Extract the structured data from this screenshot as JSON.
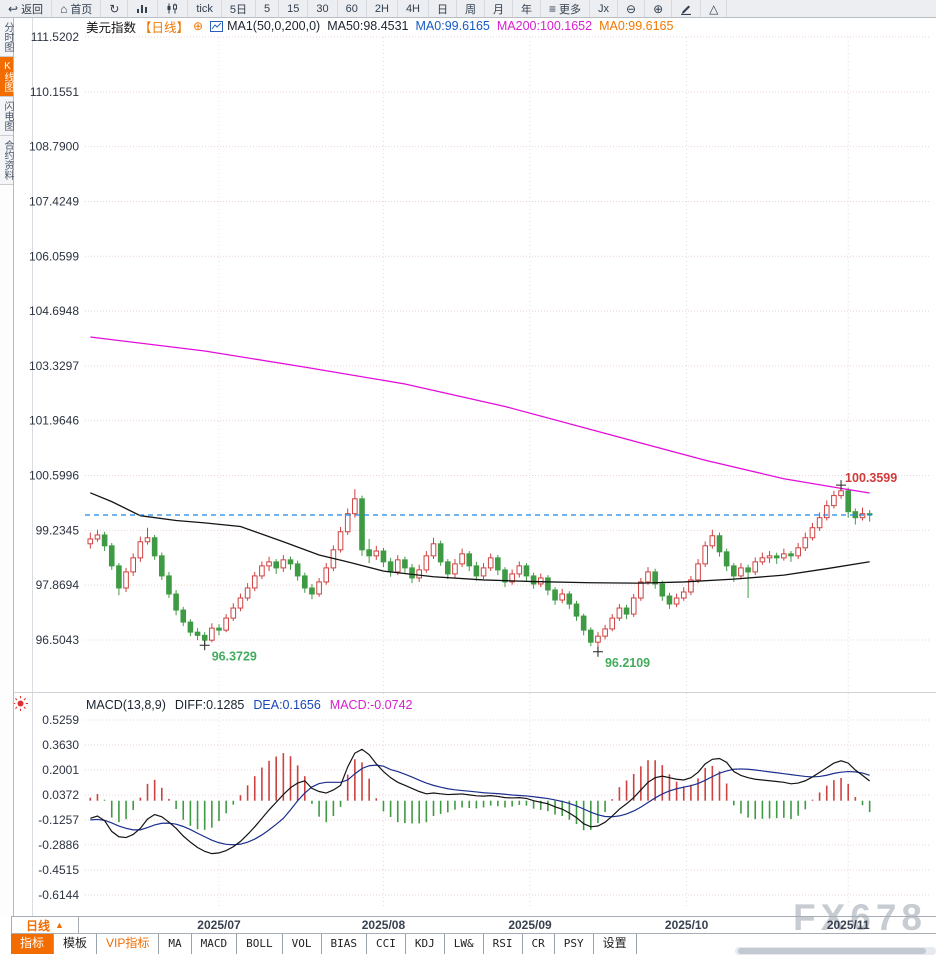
{
  "toolbar": {
    "items": [
      {
        "icon": "back",
        "label": "返回",
        "name": "back-button"
      },
      {
        "icon": "home",
        "label": "首页",
        "name": "home-button"
      },
      {
        "icon": "refresh",
        "label": "",
        "name": "refresh-button"
      },
      {
        "icon": "barchart",
        "label": "",
        "name": "bar-chart-button"
      },
      {
        "icon": "kline",
        "label": "",
        "name": "kline-style-button"
      },
      {
        "label": "tick",
        "name": "interval-tick-button"
      },
      {
        "label": "5日",
        "name": "interval-5day-button"
      },
      {
        "label": "5",
        "name": "interval-5min-button"
      },
      {
        "label": "15",
        "name": "interval-15min-button"
      },
      {
        "label": "30",
        "name": "interval-30min-button"
      },
      {
        "label": "60",
        "name": "interval-60min-button"
      },
      {
        "label": "2H",
        "name": "interval-2h-button"
      },
      {
        "label": "4H",
        "name": "interval-4h-button"
      },
      {
        "label": "日",
        "name": "interval-day-button"
      },
      {
        "label": "周",
        "name": "interval-week-button"
      },
      {
        "label": "月",
        "name": "interval-month-button"
      },
      {
        "label": "年",
        "name": "interval-year-button"
      },
      {
        "icon": "menu",
        "label": "更多",
        "name": "more-menu-button"
      },
      {
        "label": "Jx",
        "name": "indicator-formula-button"
      },
      {
        "icon": "zoomout",
        "label": "",
        "name": "zoom-out-button"
      },
      {
        "icon": "zoomin",
        "label": "",
        "name": "zoom-in-button"
      },
      {
        "icon": "pencil",
        "label": "",
        "name": "draw-tool-button"
      },
      {
        "icon": "triangle",
        "label": "",
        "name": "shape-tool-button"
      }
    ]
  },
  "sidebar": {
    "items": [
      {
        "label": "分时图",
        "active": false
      },
      {
        "label": "K线图",
        "active": true
      },
      {
        "label": "闪电图",
        "active": false
      },
      {
        "label": "合约资料",
        "active": false
      }
    ]
  },
  "chart_header": {
    "symbol": "美元指数",
    "period_badge": "【日线】",
    "add_icon": "⊕",
    "ma_settings": "MA1(50,0,200,0)",
    "ma50_label": "MA50:98.4531",
    "ma0_blue_label": "MA0:99.6165",
    "ma200_label": "MA200:100.1652",
    "ma0_orange_label": "MA0:99.6165"
  },
  "macd_header": {
    "title": "MACD(13,8,9)",
    "diff_label": "DIFF:0.1285",
    "dea_label": "DEA:0.1656",
    "macd_label": "MACD:-0.0742"
  },
  "bottom": {
    "period_label": "日线",
    "period_arrow": "▲",
    "watermark": "FX678",
    "tabs": [
      {
        "label": "指标",
        "state": "active"
      },
      {
        "label": "模板",
        "state": ""
      },
      {
        "label": "VIP指标",
        "state": "vip"
      },
      {
        "label": "MA",
        "state": "mono"
      },
      {
        "label": "MACD",
        "state": "mono"
      },
      {
        "label": "BOLL",
        "state": "mono"
      },
      {
        "label": "VOL",
        "state": "mono"
      },
      {
        "label": "BIAS",
        "state": "mono"
      },
      {
        "label": "CCI",
        "state": "mono"
      },
      {
        "label": "KDJ",
        "state": "mono"
      },
      {
        "label": "LW&",
        "state": "mono"
      },
      {
        "label": "RSI",
        "state": "mono"
      },
      {
        "label": "CR",
        "state": "mono"
      },
      {
        "label": "PSY",
        "state": "mono"
      },
      {
        "label": "设置",
        "state": ""
      }
    ]
  },
  "chart_data": {
    "type": "candlestick",
    "title": "美元指数 日线 (US Dollar Index daily with MA50/MA200 and MACD)",
    "price_axis": [
      "111.5202",
      "110.1551",
      "108.7900",
      "107.4249",
      "106.0599",
      "104.6948",
      "103.3297",
      "101.9646",
      "100.5996",
      "99.2345",
      "97.8694",
      "96.5043"
    ],
    "macd_axis": [
      "0.5259",
      "0.3630",
      "0.2001",
      "0.0372",
      "-0.1257",
      "-0.2886",
      "-0.4515",
      "-0.6144"
    ],
    "x_labels": [
      "2025/07",
      "2025/08",
      "2025/09",
      "2025/10",
      "2025/11"
    ],
    "x_label_indices": [
      18,
      41,
      61.5,
      83.4,
      106
    ],
    "current_price": 99.6165,
    "annotations": [
      {
        "label": "96.3729",
        "index": 16,
        "price": 96.3729,
        "kind": "low"
      },
      {
        "label": "96.2109",
        "index": 71,
        "price": 96.2109,
        "kind": "low"
      },
      {
        "label": "100.3599",
        "index": 105,
        "price": 100.3599,
        "kind": "high"
      }
    ],
    "colors": {
      "up": "#cf4140",
      "down": "#3f9a44",
      "ma50": "#141414",
      "ma200": "#e40ddb",
      "diff": "#141414",
      "dea": "#1b2f8f",
      "price_line": "#1e88e5",
      "annotation_low": "#43ab5e",
      "annotation_high": "#d03a3a"
    },
    "candles": [
      [
        98.9,
        99.18,
        98.78,
        99.02
      ],
      [
        99.02,
        99.25,
        98.95,
        99.12
      ],
      [
        99.12,
        99.2,
        98.72,
        98.85
      ],
      [
        98.85,
        98.92,
        98.25,
        98.35
      ],
      [
        98.35,
        98.42,
        97.62,
        97.8
      ],
      [
        97.8,
        98.3,
        97.7,
        98.2
      ],
      [
        98.2,
        98.66,
        98.1,
        98.55
      ],
      [
        98.55,
        99.08,
        98.45,
        98.95
      ],
      [
        98.95,
        99.3,
        98.88,
        99.05
      ],
      [
        99.05,
        99.12,
        98.5,
        98.6
      ],
      [
        98.6,
        98.68,
        98.0,
        98.1
      ],
      [
        98.1,
        98.2,
        97.55,
        97.65
      ],
      [
        97.65,
        97.75,
        97.12,
        97.25
      ],
      [
        97.25,
        97.33,
        96.85,
        96.95
      ],
      [
        96.95,
        97.02,
        96.6,
        96.7
      ],
      [
        96.7,
        96.8,
        96.5,
        96.62
      ],
      [
        96.62,
        96.7,
        96.3729,
        96.5
      ],
      [
        96.5,
        96.92,
        96.45,
        96.8
      ],
      [
        96.8,
        96.9,
        96.62,
        96.75
      ],
      [
        96.75,
        97.15,
        96.7,
        97.05
      ],
      [
        97.05,
        97.42,
        96.98,
        97.3
      ],
      [
        97.3,
        97.66,
        97.22,
        97.55
      ],
      [
        97.55,
        97.92,
        97.48,
        97.8
      ],
      [
        97.8,
        98.2,
        97.72,
        98.1
      ],
      [
        98.1,
        98.46,
        98.02,
        98.35
      ],
      [
        98.35,
        98.58,
        98.22,
        98.45
      ],
      [
        98.45,
        98.52,
        98.15,
        98.3
      ],
      [
        98.3,
        98.62,
        98.2,
        98.5
      ],
      [
        98.5,
        98.58,
        98.25,
        98.4
      ],
      [
        98.4,
        98.48,
        97.98,
        98.1
      ],
      [
        98.1,
        98.18,
        97.68,
        97.8
      ],
      [
        97.8,
        97.9,
        97.52,
        97.65
      ],
      [
        97.65,
        98.05,
        97.58,
        97.95
      ],
      [
        97.95,
        98.42,
        97.88,
        98.3
      ],
      [
        98.3,
        98.86,
        98.22,
        98.75
      ],
      [
        98.75,
        99.32,
        98.68,
        99.2
      ],
      [
        99.2,
        99.78,
        99.12,
        99.65
      ],
      [
        99.65,
        100.26,
        99.55,
        100.02
      ],
      [
        100.02,
        100.1,
        98.6,
        98.75
      ],
      [
        98.75,
        99.02,
        98.42,
        98.6
      ],
      [
        98.6,
        98.85,
        98.5,
        98.72
      ],
      [
        98.72,
        98.8,
        98.32,
        98.45
      ],
      [
        98.45,
        98.55,
        98.08,
        98.2
      ],
      [
        98.2,
        98.62,
        98.12,
        98.5
      ],
      [
        98.5,
        98.58,
        98.18,
        98.3
      ],
      [
        98.3,
        98.4,
        97.92,
        98.05
      ],
      [
        98.05,
        98.38,
        97.95,
        98.25
      ],
      [
        98.25,
        98.72,
        98.18,
        98.6
      ],
      [
        98.6,
        99.05,
        98.52,
        98.9
      ],
      [
        98.9,
        98.98,
        98.35,
        98.45
      ],
      [
        98.45,
        98.52,
        98.02,
        98.15
      ],
      [
        98.15,
        98.52,
        98.05,
        98.4
      ],
      [
        98.4,
        98.78,
        98.32,
        98.65
      ],
      [
        98.65,
        98.72,
        98.22,
        98.35
      ],
      [
        98.35,
        98.45,
        97.98,
        98.1
      ],
      [
        98.1,
        98.42,
        98.02,
        98.3
      ],
      [
        98.3,
        98.66,
        98.22,
        98.55
      ],
      [
        98.55,
        98.62,
        98.12,
        98.25
      ],
      [
        98.25,
        98.32,
        97.82,
        97.95
      ],
      [
        97.95,
        98.26,
        97.88,
        98.15
      ],
      [
        98.15,
        98.46,
        98.06,
        98.35
      ],
      [
        98.35,
        98.42,
        97.98,
        98.1
      ],
      [
        98.1,
        98.18,
        97.78,
        97.9
      ],
      [
        97.9,
        98.16,
        97.82,
        98.05
      ],
      [
        98.05,
        98.12,
        97.62,
        97.75
      ],
      [
        97.75,
        97.82,
        97.38,
        97.5
      ],
      [
        97.5,
        97.78,
        97.42,
        97.65
      ],
      [
        97.65,
        97.72,
        97.28,
        97.4
      ],
      [
        97.4,
        97.48,
        96.98,
        97.1
      ],
      [
        97.1,
        97.16,
        96.62,
        96.75
      ],
      [
        96.75,
        96.82,
        96.35,
        96.45
      ],
      [
        96.45,
        96.7,
        96.2109,
        96.6
      ],
      [
        96.6,
        96.88,
        96.52,
        96.78
      ],
      [
        96.78,
        97.15,
        96.72,
        97.05
      ],
      [
        97.05,
        97.4,
        96.98,
        97.3
      ],
      [
        97.3,
        97.38,
        97.02,
        97.15
      ],
      [
        97.15,
        97.65,
        97.08,
        97.55
      ],
      [
        97.55,
        98.05,
        97.48,
        97.95
      ],
      [
        97.95,
        98.32,
        97.88,
        98.2
      ],
      [
        98.2,
        98.28,
        97.78,
        97.9
      ],
      [
        97.9,
        97.98,
        97.48,
        97.6
      ],
      [
        97.6,
        97.68,
        97.28,
        97.4
      ],
      [
        97.4,
        97.66,
        97.32,
        97.55
      ],
      [
        97.55,
        97.82,
        97.48,
        97.7
      ],
      [
        97.7,
        98.1,
        97.62,
        98.0
      ],
      [
        98.0,
        98.52,
        97.92,
        98.4
      ],
      [
        98.4,
        98.96,
        98.32,
        98.85
      ],
      [
        98.85,
        99.25,
        98.78,
        99.1
      ],
      [
        99.1,
        99.18,
        98.58,
        98.7
      ],
      [
        98.7,
        98.78,
        98.22,
        98.35
      ],
      [
        98.35,
        98.42,
        97.95,
        98.1
      ],
      [
        98.1,
        98.42,
        98.02,
        98.3
      ],
      [
        98.3,
        98.38,
        97.55,
        98.2
      ],
      [
        98.2,
        98.56,
        98.12,
        98.45
      ],
      [
        98.45,
        98.68,
        98.38,
        98.55
      ],
      [
        98.55,
        98.72,
        98.42,
        98.6
      ],
      [
        98.6,
        98.68,
        98.4,
        98.55
      ],
      [
        98.55,
        98.78,
        98.48,
        98.65
      ],
      [
        98.65,
        98.72,
        98.45,
        98.6
      ],
      [
        98.6,
        98.92,
        98.52,
        98.8
      ],
      [
        98.8,
        99.18,
        98.72,
        99.05
      ],
      [
        99.05,
        99.42,
        98.98,
        99.3
      ],
      [
        99.3,
        99.68,
        99.22,
        99.55
      ],
      [
        99.55,
        99.98,
        99.48,
        99.85
      ],
      [
        99.85,
        100.22,
        99.78,
        100.1
      ],
      [
        100.1,
        100.3599,
        100.02,
        100.22
      ],
      [
        100.22,
        100.3,
        99.55,
        99.7
      ],
      [
        99.7,
        99.78,
        99.38,
        99.55
      ],
      [
        99.55,
        99.8,
        99.48,
        99.65
      ],
      [
        99.65,
        99.74,
        99.45,
        99.62
      ]
    ],
    "ma50_points": [
      [
        0,
        100.17
      ],
      [
        3,
        99.95
      ],
      [
        7,
        99.6
      ],
      [
        12,
        99.48
      ],
      [
        16,
        99.42
      ],
      [
        21,
        99.33
      ],
      [
        27,
        98.95
      ],
      [
        32,
        98.62
      ],
      [
        36,
        98.45
      ],
      [
        41,
        98.22
      ],
      [
        48,
        98.08
      ],
      [
        55,
        98.0
      ],
      [
        62,
        97.96
      ],
      [
        70,
        97.93
      ],
      [
        77,
        97.92
      ],
      [
        83,
        97.95
      ],
      [
        90,
        98.02
      ],
      [
        97,
        98.12
      ],
      [
        103,
        98.28
      ],
      [
        109,
        98.4531
      ]
    ],
    "ma200_points": [
      [
        0,
        104.05
      ],
      [
        16,
        103.7
      ],
      [
        30,
        103.3
      ],
      [
        44,
        102.88
      ],
      [
        58,
        102.32
      ],
      [
        72,
        101.65
      ],
      [
        86,
        100.98
      ],
      [
        97,
        100.52
      ],
      [
        105,
        100.28
      ],
      [
        109,
        100.1652
      ]
    ],
    "macd": {
      "diff": [
        -0.115,
        -0.1,
        -0.13,
        -0.2,
        -0.235,
        -0.24,
        -0.22,
        -0.18,
        -0.12,
        -0.09,
        -0.105,
        -0.14,
        -0.18,
        -0.23,
        -0.27,
        -0.305,
        -0.33,
        -0.345,
        -0.34,
        -0.325,
        -0.3,
        -0.265,
        -0.22,
        -0.17,
        -0.115,
        -0.06,
        -0.01,
        0.04,
        0.085,
        0.115,
        0.13,
        0.08,
        0.06,
        0.05,
        0.07,
        0.1,
        0.22,
        0.31,
        0.335,
        0.3,
        0.24,
        0.19,
        0.15,
        0.12,
        0.1,
        0.08,
        0.06,
        0.045,
        0.05,
        0.045,
        0.04,
        0.042,
        0.044,
        0.038,
        0.032,
        0.03,
        0.033,
        0.028,
        0.02,
        0.018,
        0.02,
        0.015,
        0.0,
        -0.01,
        -0.02,
        -0.04,
        -0.055,
        -0.08,
        -0.11,
        -0.15,
        -0.17,
        -0.165,
        -0.14,
        -0.1,
        -0.055,
        -0.02,
        0.02,
        0.07,
        0.12,
        0.15,
        0.16,
        0.15,
        0.14,
        0.135,
        0.15,
        0.185,
        0.24,
        0.27,
        0.275,
        0.25,
        0.19,
        0.165,
        0.15,
        0.14,
        0.135,
        0.13,
        0.125,
        0.12,
        0.11,
        0.115,
        0.13,
        0.155,
        0.185,
        0.215,
        0.245,
        0.26,
        0.245,
        0.2,
        0.165,
        0.1285
      ],
      "dea": [
        -0.125,
        -0.122,
        -0.128,
        -0.145,
        -0.165,
        -0.18,
        -0.19,
        -0.19,
        -0.175,
        -0.158,
        -0.147,
        -0.146,
        -0.153,
        -0.168,
        -0.188,
        -0.212,
        -0.235,
        -0.257,
        -0.274,
        -0.284,
        -0.287,
        -0.283,
        -0.27,
        -0.25,
        -0.223,
        -0.19,
        -0.154,
        -0.115,
        -0.06,
        0.0,
        0.05,
        0.09,
        0.112,
        0.12,
        0.12,
        0.12,
        0.135,
        0.175,
        0.21,
        0.228,
        0.232,
        0.225,
        0.203,
        0.19,
        0.173,
        0.154,
        0.134,
        0.115,
        0.1,
        0.088,
        0.078,
        0.071,
        0.066,
        0.062,
        0.057,
        0.052,
        0.049,
        0.046,
        0.042,
        0.037,
        0.034,
        0.031,
        0.026,
        0.02,
        0.014,
        0.005,
        -0.005,
        -0.018,
        -0.034,
        -0.054,
        -0.075,
        -0.092,
        -0.103,
        -0.105,
        -0.099,
        -0.086,
        -0.067,
        -0.042,
        -0.012,
        0.018,
        0.044,
        0.064,
        0.078,
        0.088,
        0.098,
        0.112,
        0.133,
        0.157,
        0.179,
        0.194,
        0.205,
        0.207,
        0.205,
        0.2,
        0.194,
        0.188,
        0.182,
        0.176,
        0.17,
        0.164,
        0.158,
        0.155,
        0.158,
        0.166,
        0.178,
        0.186,
        0.19,
        0.188,
        0.18,
        0.1656
      ]
    }
  }
}
